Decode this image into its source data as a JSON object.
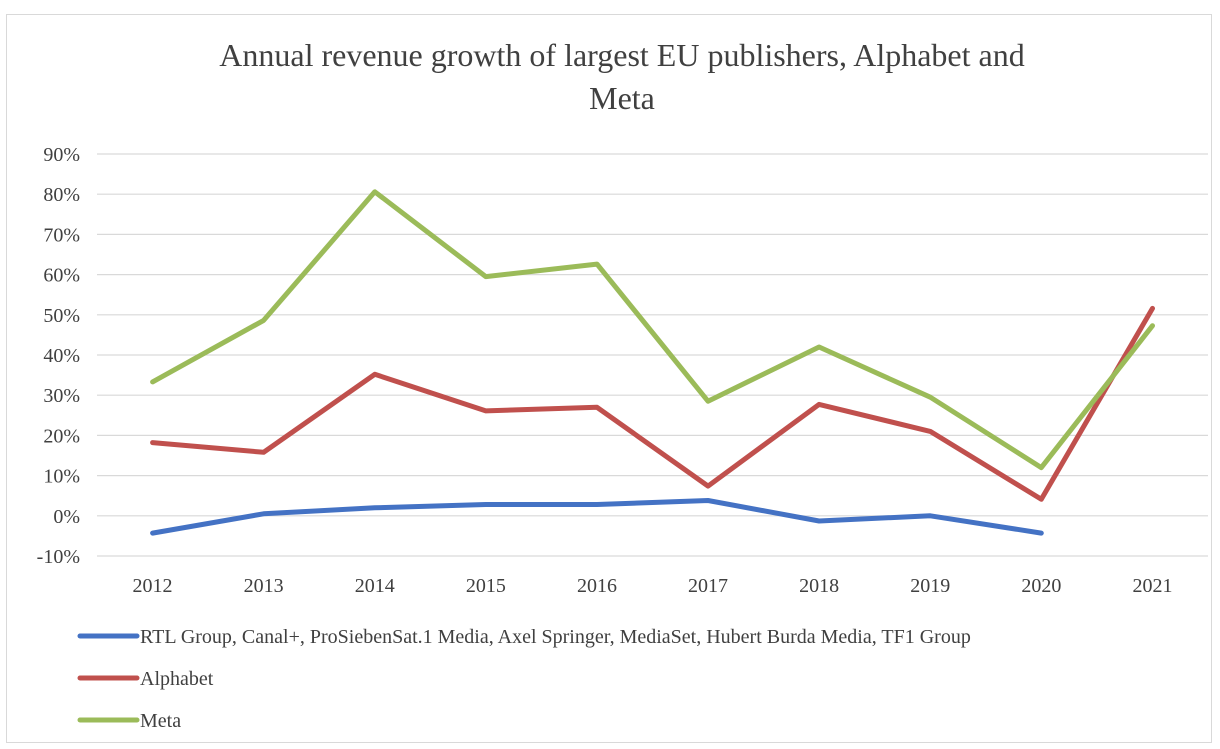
{
  "chart_data": {
    "type": "line",
    "title_line1": "Annual revenue growth of largest EU publishers, Alphabet and",
    "title_line2": "Meta",
    "xlabel": "",
    "ylabel": "",
    "categories": [
      "2012",
      "2013",
      "2014",
      "2015",
      "2016",
      "2017",
      "2018",
      "2019",
      "2020",
      "2021"
    ],
    "ylim": [
      -10,
      90
    ],
    "yticks": [
      -10,
      0,
      10,
      20,
      30,
      40,
      50,
      60,
      70,
      80,
      90
    ],
    "ytick_labels": [
      "-10%",
      "0%",
      "10%",
      "20%",
      "30%",
      "40%",
      "50%",
      "60%",
      "70%",
      "80%",
      "90%"
    ],
    "grid": true,
    "legend_position": "bottom",
    "series": [
      {
        "name": "RTL Group, Canal+, ProSiebenSat.1 Media, Axel Springer, MediaSet, Hubert Burda Media, TF1 Group",
        "color": "#4472c4",
        "values": [
          -4.3,
          0.5,
          2.0,
          2.8,
          2.8,
          3.8,
          -1.3,
          0.0,
          -4.3,
          null
        ]
      },
      {
        "name": "Alphabet",
        "color": "#c0504d",
        "values": [
          18.2,
          15.8,
          35.2,
          26.1,
          27.0,
          7.4,
          27.7,
          21.0,
          4.1,
          51.6
        ]
      },
      {
        "name": "Meta",
        "color": "#9bbb59",
        "values": [
          33.3,
          48.6,
          80.6,
          59.5,
          62.6,
          28.5,
          42.0,
          29.5,
          12.0,
          47.3
        ]
      }
    ]
  }
}
